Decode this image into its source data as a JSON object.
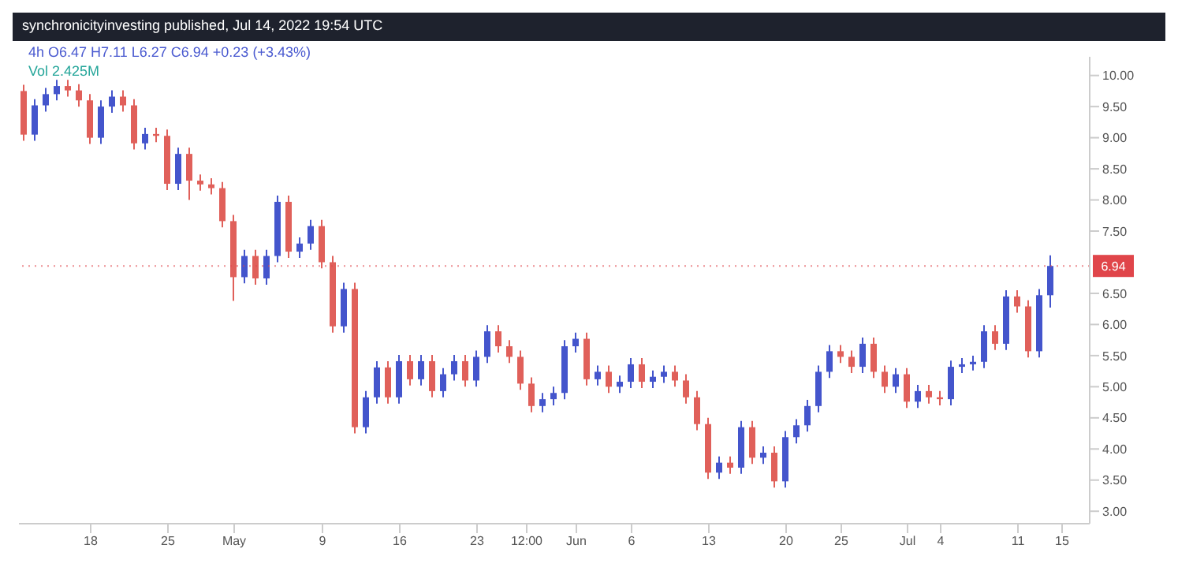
{
  "chart_data": {
    "type": "candlestick",
    "subtitle": "synchronicityinvesting published, Jul 14, 2022 19:54 UTC",
    "title": "4h O6.47 H7.11 L6.27 C6.94 +0.23 (+3.43%)",
    "annotations": [
      "Vol 2.425M"
    ],
    "x": [
      "2022-04-12",
      "2022-04-13",
      "2022-04-14",
      "2022-04-15",
      "2022-04-16",
      "2022-04-17",
      "2022-04-18",
      "2022-04-19",
      "2022-04-20",
      "2022-04-21",
      "2022-04-22",
      "2022-04-23",
      "2022-04-24",
      "2022-04-25",
      "2022-04-26",
      "2022-04-27",
      "2022-04-28",
      "2022-04-29",
      "2022-04-30",
      "2022-05-01",
      "2022-05-02",
      "2022-05-03",
      "2022-05-04",
      "2022-05-05",
      "2022-05-06",
      "2022-05-07",
      "2022-05-08",
      "2022-05-09",
      "2022-05-10",
      "2022-05-11",
      "2022-05-12",
      "2022-05-13",
      "2022-05-14",
      "2022-05-15",
      "2022-05-16",
      "2022-05-17",
      "2022-05-18",
      "2022-05-19",
      "2022-05-20",
      "2022-05-21",
      "2022-05-22",
      "2022-05-23",
      "2022-05-24",
      "2022-05-25",
      "2022-05-26",
      "2022-05-27",
      "2022-05-28",
      "2022-05-29",
      "2022-05-30",
      "2022-05-31",
      "2022-06-01",
      "2022-06-02",
      "2022-06-03",
      "2022-06-04",
      "2022-06-05",
      "2022-06-06",
      "2022-06-07",
      "2022-06-08",
      "2022-06-09",
      "2022-06-10",
      "2022-06-11",
      "2022-06-12",
      "2022-06-13",
      "2022-06-14",
      "2022-06-15",
      "2022-06-16",
      "2022-06-17",
      "2022-06-18",
      "2022-06-19",
      "2022-06-20",
      "2022-06-21",
      "2022-06-22",
      "2022-06-23",
      "2022-06-24",
      "2022-06-25",
      "2022-06-26",
      "2022-06-27",
      "2022-06-28",
      "2022-06-29",
      "2022-06-30",
      "2022-07-01",
      "2022-07-02",
      "2022-07-03",
      "2022-07-04",
      "2022-07-05",
      "2022-07-06",
      "2022-07-07",
      "2022-07-08",
      "2022-07-09",
      "2022-07-10",
      "2022-07-11",
      "2022-07-12",
      "2022-07-13",
      "2022-07-14"
    ],
    "ohlc": [
      [
        9.75,
        9.85,
        8.95,
        9.05
      ],
      [
        9.05,
        9.62,
        8.95,
        9.52
      ],
      [
        9.52,
        9.8,
        9.42,
        9.7
      ],
      [
        9.7,
        9.93,
        9.6,
        9.83
      ],
      [
        9.83,
        9.93,
        9.66,
        9.76
      ],
      [
        9.76,
        9.86,
        9.5,
        9.6
      ],
      [
        9.6,
        9.7,
        8.9,
        9.0
      ],
      [
        9.0,
        9.6,
        8.9,
        9.5
      ],
      [
        9.5,
        9.76,
        9.4,
        9.66
      ],
      [
        9.66,
        9.76,
        9.42,
        9.52
      ],
      [
        9.52,
        9.62,
        8.81,
        8.91
      ],
      [
        8.91,
        9.16,
        8.81,
        9.06
      ],
      [
        9.06,
        9.16,
        8.93,
        9.03
      ],
      [
        9.03,
        9.13,
        8.16,
        8.26
      ],
      [
        8.26,
        8.84,
        8.16,
        8.74
      ],
      [
        8.74,
        8.84,
        8.0,
        8.31
      ],
      [
        8.31,
        8.41,
        8.15,
        8.25
      ],
      [
        8.25,
        8.35,
        8.09,
        8.19
      ],
      [
        8.19,
        8.29,
        7.56,
        7.66
      ],
      [
        7.66,
        7.76,
        6.38,
        6.76
      ],
      [
        6.76,
        7.2,
        6.66,
        7.1
      ],
      [
        7.1,
        7.2,
        6.64,
        6.74
      ],
      [
        6.74,
        7.2,
        6.64,
        7.1
      ],
      [
        7.1,
        8.07,
        7.0,
        7.97
      ],
      [
        7.97,
        8.07,
        7.07,
        7.17
      ],
      [
        7.17,
        7.4,
        7.07,
        7.3
      ],
      [
        7.3,
        7.68,
        7.2,
        7.58
      ],
      [
        7.58,
        7.68,
        6.9,
        7.0
      ],
      [
        7.0,
        7.1,
        5.87,
        5.97
      ],
      [
        5.97,
        6.67,
        5.87,
        6.57
      ],
      [
        6.57,
        6.67,
        4.25,
        4.35
      ],
      [
        4.35,
        4.93,
        4.25,
        4.83
      ],
      [
        4.83,
        5.41,
        4.73,
        5.31
      ],
      [
        5.31,
        5.41,
        4.73,
        4.83
      ],
      [
        4.83,
        5.51,
        4.73,
        5.41
      ],
      [
        5.41,
        5.51,
        5.02,
        5.12
      ],
      [
        5.12,
        5.51,
        5.02,
        5.41
      ],
      [
        5.41,
        5.51,
        4.83,
        4.93
      ],
      [
        4.93,
        5.3,
        4.83,
        5.2
      ],
      [
        5.2,
        5.51,
        5.1,
        5.41
      ],
      [
        5.41,
        5.51,
        5.0,
        5.1
      ],
      [
        5.1,
        5.58,
        5.0,
        5.48
      ],
      [
        5.48,
        5.99,
        5.38,
        5.89
      ],
      [
        5.89,
        5.99,
        5.55,
        5.65
      ],
      [
        5.65,
        5.75,
        5.38,
        5.48
      ],
      [
        5.48,
        5.58,
        4.95,
        5.05
      ],
      [
        5.05,
        5.15,
        4.59,
        4.69
      ],
      [
        4.69,
        4.9,
        4.59,
        4.8
      ],
      [
        4.8,
        5.0,
        4.7,
        4.9
      ],
      [
        4.9,
        5.75,
        4.8,
        5.65
      ],
      [
        5.65,
        5.87,
        5.55,
        5.77
      ],
      [
        5.77,
        5.87,
        5.02,
        5.12
      ],
      [
        5.12,
        5.34,
        5.02,
        5.24
      ],
      [
        5.24,
        5.34,
        4.9,
        5.0
      ],
      [
        5.0,
        5.18,
        4.9,
        5.08
      ],
      [
        5.08,
        5.46,
        4.98,
        5.36
      ],
      [
        5.36,
        5.46,
        4.98,
        5.08
      ],
      [
        5.08,
        5.26,
        4.98,
        5.16
      ],
      [
        5.16,
        5.34,
        5.06,
        5.24
      ],
      [
        5.24,
        5.34,
        5.0,
        5.1
      ],
      [
        5.1,
        5.2,
        4.73,
        4.83
      ],
      [
        4.83,
        4.93,
        4.3,
        4.4
      ],
      [
        4.4,
        4.5,
        3.52,
        3.62
      ],
      [
        3.62,
        3.88,
        3.52,
        3.78
      ],
      [
        3.78,
        3.88,
        3.6,
        3.7
      ],
      [
        3.7,
        4.45,
        3.6,
        4.35
      ],
      [
        4.35,
        4.45,
        3.76,
        3.86
      ],
      [
        3.86,
        4.04,
        3.76,
        3.94
      ],
      [
        3.94,
        4.04,
        3.38,
        3.48
      ],
      [
        3.48,
        4.29,
        3.38,
        4.19
      ],
      [
        4.19,
        4.48,
        4.09,
        4.38
      ],
      [
        4.38,
        4.79,
        4.28,
        4.69
      ],
      [
        4.69,
        5.34,
        4.59,
        5.24
      ],
      [
        5.24,
        5.67,
        5.14,
        5.57
      ],
      [
        5.57,
        5.67,
        5.38,
        5.48
      ],
      [
        5.48,
        5.58,
        5.22,
        5.32
      ],
      [
        5.32,
        5.79,
        5.22,
        5.69
      ],
      [
        5.69,
        5.79,
        5.14,
        5.24
      ],
      [
        5.24,
        5.34,
        4.9,
        5.0
      ],
      [
        5.0,
        5.3,
        4.9,
        5.2
      ],
      [
        5.2,
        5.3,
        4.66,
        4.76
      ],
      [
        4.76,
        5.03,
        4.66,
        4.93
      ],
      [
        4.93,
        5.03,
        4.73,
        4.83
      ],
      [
        4.83,
        4.93,
        4.7,
        4.8
      ],
      [
        4.8,
        5.42,
        4.7,
        5.32
      ],
      [
        5.32,
        5.46,
        5.22,
        5.36
      ],
      [
        5.36,
        5.5,
        5.26,
        5.4
      ],
      [
        5.4,
        5.99,
        5.3,
        5.89
      ],
      [
        5.89,
        5.99,
        5.59,
        5.69
      ],
      [
        5.69,
        6.55,
        5.59,
        6.45
      ],
      [
        6.45,
        6.55,
        6.19,
        6.29
      ],
      [
        6.29,
        6.39,
        5.47,
        5.57
      ],
      [
        5.57,
        6.57,
        5.47,
        6.47
      ],
      [
        6.47,
        7.11,
        6.27,
        6.94
      ]
    ],
    "xlim": [
      "2022-04-11T12:00",
      "2022-07-17T12:00"
    ],
    "xticks": [
      {
        "value": "2022-04-18",
        "label": "18"
      },
      {
        "value": "2022-04-25",
        "label": "25"
      },
      {
        "value": "2022-05-01",
        "label": "May"
      },
      {
        "value": "2022-05-09",
        "label": "9"
      },
      {
        "value": "2022-05-16",
        "label": "16"
      },
      {
        "value": "2022-05-23",
        "label": "23"
      },
      {
        "value": "2022-05-27T12:00",
        "label": "12:00"
      },
      {
        "value": "2022-06-01",
        "label": "Jun"
      },
      {
        "value": "2022-06-06",
        "label": "6"
      },
      {
        "value": "2022-06-13",
        "label": "13"
      },
      {
        "value": "2022-06-20",
        "label": "20"
      },
      {
        "value": "2022-06-25",
        "label": "25"
      },
      {
        "value": "2022-07-01",
        "label": "Jul"
      },
      {
        "value": "2022-07-04",
        "label": "4"
      },
      {
        "value": "2022-07-11",
        "label": "11"
      },
      {
        "value": "2022-07-15",
        "label": "15"
      }
    ],
    "ylim": [
      2.8,
      10.3
    ],
    "yticks": [
      {
        "value": 3,
        "label": "3.00"
      },
      {
        "value": 3.5,
        "label": "3.50"
      },
      {
        "value": 4,
        "label": "4.00"
      },
      {
        "value": 4.5,
        "label": "4.50"
      },
      {
        "value": 5,
        "label": "5.00"
      },
      {
        "value": 5.5,
        "label": "5.50"
      },
      {
        "value": 6,
        "label": "6.00"
      },
      {
        "value": 6.5,
        "label": "6.50"
      },
      {
        "value": 7.5,
        "label": "7.50"
      },
      {
        "value": 8,
        "label": "8.00"
      },
      {
        "value": 8.5,
        "label": "8.50"
      },
      {
        "value": 9,
        "label": "9.00"
      },
      {
        "value": 9.5,
        "label": "9.50"
      },
      {
        "value": 10,
        "label": "10.00"
      }
    ],
    "ref_lines": [
      {
        "axis": "y",
        "value": 6.94,
        "label": "6.94",
        "color": "#e0454a",
        "line_style": "dotted"
      }
    ]
  }
}
